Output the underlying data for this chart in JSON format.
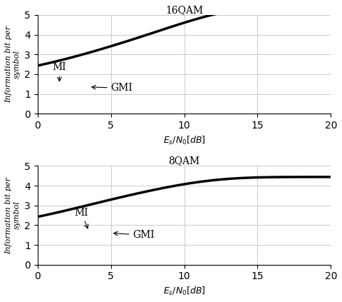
{
  "xlim": [
    0,
    20
  ],
  "ylim": [
    0,
    5
  ],
  "xticks": [
    0,
    5,
    10,
    15,
    20
  ],
  "yticks": [
    0,
    1,
    2,
    3,
    4,
    5
  ],
  "xlabel": "$E_s/N_0[dB]$",
  "ylabel": "Information bit per\nsymbol",
  "top_title": "16QAM",
  "bottom_title": "8QAM",
  "mi_color": "#000000",
  "gmi_color": "#000000",
  "mi_linewidth": 2.5,
  "gmi_linewidth": 1.8,
  "background_color": "#ffffff",
  "grid_color": "#cccccc",
  "snr_db": [
    0,
    0.5,
    1,
    1.5,
    2,
    2.5,
    3,
    3.5,
    4,
    4.5,
    5,
    5.5,
    6,
    6.5,
    7,
    7.5,
    8,
    8.5,
    9,
    9.5,
    10,
    10.5,
    11,
    11.5,
    12,
    12.5,
    13,
    13.5,
    14,
    14.5,
    15,
    15.5,
    16,
    16.5,
    17,
    17.5,
    18,
    18.5,
    19,
    19.5,
    20
  ],
  "font_family": "serif",
  "annotation_fontsize": 10
}
